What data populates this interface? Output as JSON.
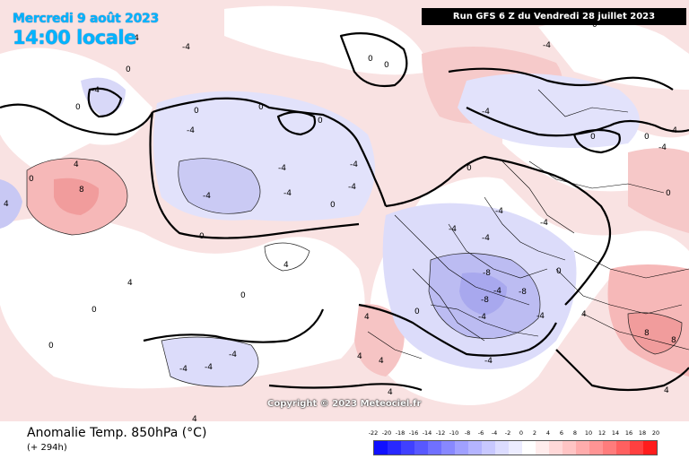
{
  "header": {
    "date_line": "Mercredi 9 août 2023",
    "time_line": "14:00 locale",
    "run_banner": "Run GFS 6 Z du Vendredi 28 juillet 2023"
  },
  "map": {
    "copyright": "Copyright © 2023 Meteociel.fr",
    "contour_labels": [
      {
        "text": "-4"
      },
      {
        "text": "-4"
      },
      {
        "text": "-4"
      },
      {
        "text": "-4"
      },
      {
        "text": "-4"
      },
      {
        "text": "-4"
      },
      {
        "text": "-4"
      },
      {
        "text": "-4"
      },
      {
        "text": "-4"
      },
      {
        "text": "-4"
      },
      {
        "text": "-4"
      },
      {
        "text": "-4"
      },
      {
        "text": "-4"
      },
      {
        "text": "-4"
      },
      {
        "text": "-4"
      },
      {
        "text": "-4"
      },
      {
        "text": "-4"
      },
      {
        "text": "-4"
      },
      {
        "text": "-4"
      },
      {
        "text": "-4"
      },
      {
        "text": "-4"
      },
      {
        "text": "-4"
      },
      {
        "text": "-4"
      },
      {
        "text": "-4"
      },
      {
        "text": "-8"
      },
      {
        "text": "-8"
      },
      {
        "text": "-8"
      },
      {
        "text": "4"
      },
      {
        "text": "4"
      },
      {
        "text": "4"
      },
      {
        "text": "4"
      },
      {
        "text": "4"
      },
      {
        "text": "4"
      },
      {
        "text": "4"
      },
      {
        "text": "4"
      },
      {
        "text": "4"
      },
      {
        "text": "4"
      },
      {
        "text": "4"
      },
      {
        "text": "8"
      },
      {
        "text": "8"
      },
      {
        "text": "8"
      },
      {
        "text": "0"
      },
      {
        "text": "0"
      },
      {
        "text": "0"
      },
      {
        "text": "0"
      },
      {
        "text": "0"
      },
      {
        "text": "0"
      },
      {
        "text": "0"
      },
      {
        "text": "0"
      },
      {
        "text": "0"
      },
      {
        "text": "0"
      },
      {
        "text": "0"
      },
      {
        "text": "0"
      },
      {
        "text": "0"
      },
      {
        "text": "0"
      },
      {
        "text": "0"
      },
      {
        "text": "0"
      },
      {
        "text": "0"
      },
      {
        "text": "0"
      },
      {
        "text": "0"
      },
      {
        "text": "0"
      }
    ],
    "colors": {
      "neutral": "#ffffff",
      "warm_1": "#fbe0e0",
      "warm_2": "#f7c0c0",
      "warm_3": "#f09a9a",
      "cool_1": "#e4e4fb",
      "cool_2": "#c8c8f5",
      "cool_3": "#a8a8ef",
      "coast": "#000000"
    }
  },
  "footer": {
    "param_title": "Anomalie Temp. 850hPa (°C)",
    "lead_time": "(+ 294h)",
    "legend": {
      "labels": [
        "-22",
        "-20",
        "-18",
        "-16",
        "-14",
        "-12",
        "-10",
        "-8",
        "-6",
        "-4",
        "-2",
        "0",
        "2",
        "4",
        "6",
        "8",
        "10",
        "12",
        "14",
        "16",
        "18",
        "20"
      ],
      "colors": [
        "#1010ff",
        "#2828ff",
        "#4040ff",
        "#5858ff",
        "#7070ff",
        "#8888ff",
        "#a0a0ff",
        "#b4b4ff",
        "#c8c8ff",
        "#dcdcff",
        "#ececff",
        "#ffffff",
        "#ffecec",
        "#ffd8d8",
        "#ffc4c4",
        "#ffacac",
        "#ff9494",
        "#ff7c7c",
        "#ff6060",
        "#ff4040",
        "#ff1c1c"
      ]
    }
  }
}
